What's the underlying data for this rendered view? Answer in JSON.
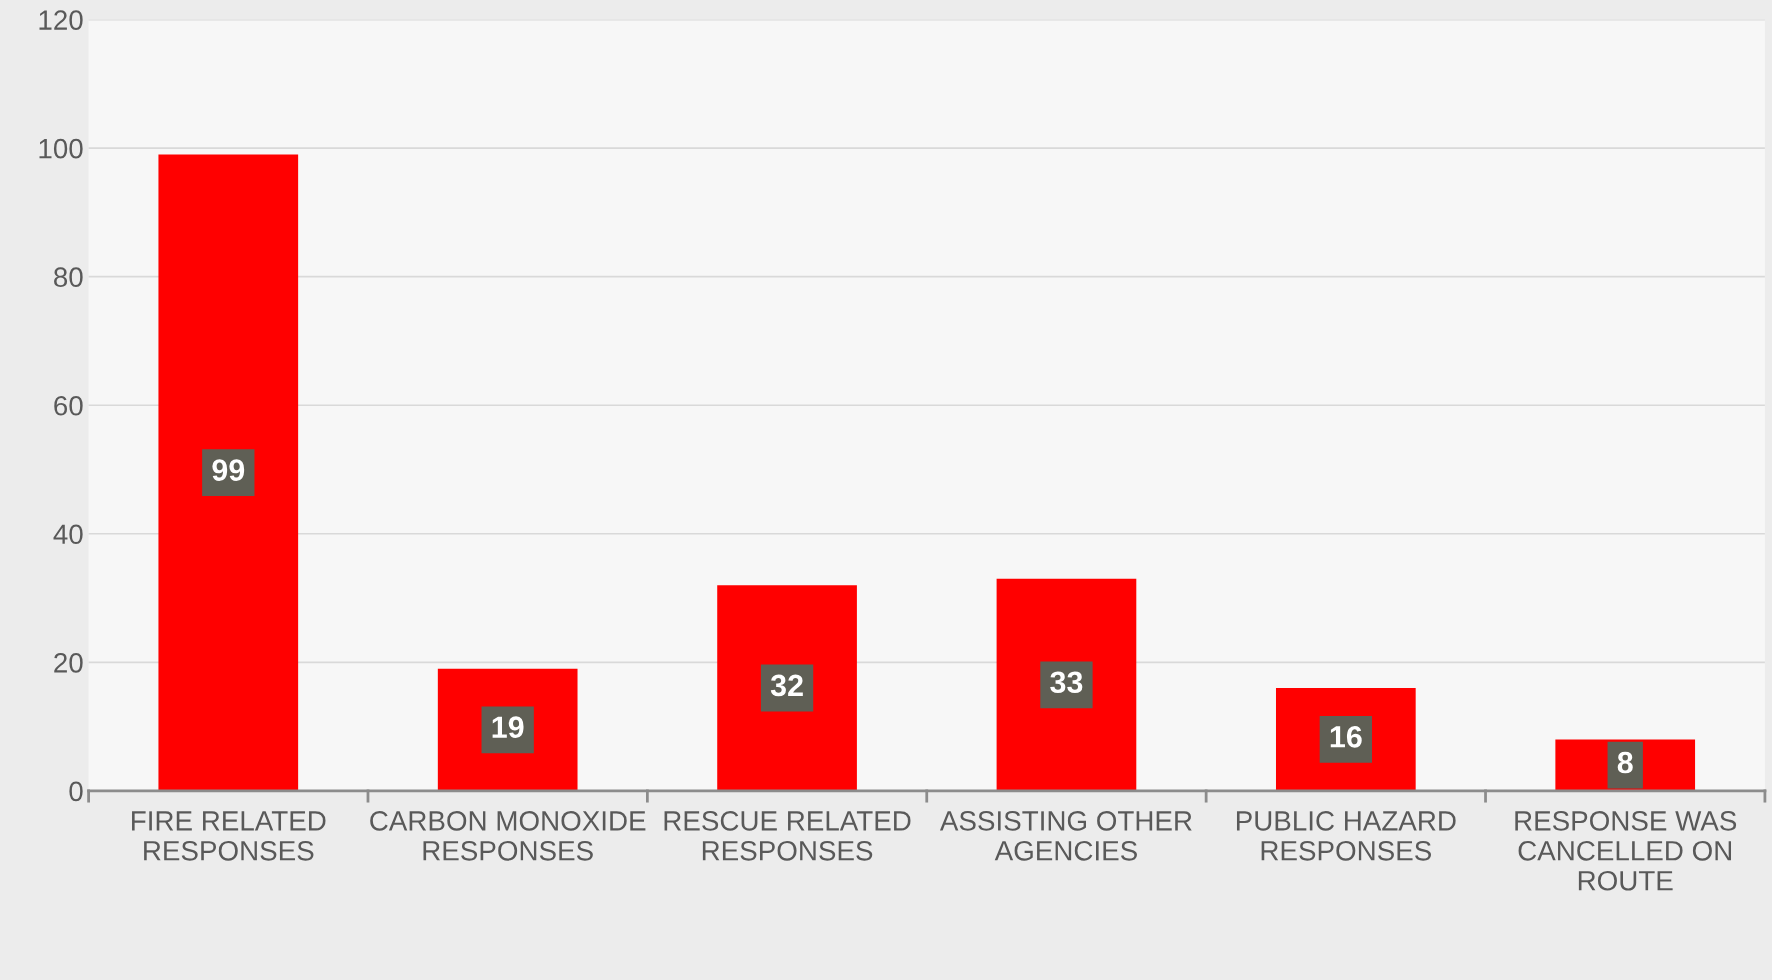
{
  "chart_data": {
    "type": "bar",
    "categories": [
      "FIRE RELATED\nRESPONSES",
      "CARBON MONOXIDE\nRESPONSES",
      "RESCUE RELATED\nRESPONSES",
      "ASSISTING OTHER\nAGENCIES",
      "PUBLIC HAZARD\nRESPONSES",
      "RESPONSE WAS\nCANCELLED ON\nROUTE"
    ],
    "values": [
      99,
      19,
      32,
      33,
      16,
      8
    ],
    "color": "#ff0000",
    "ylim": [
      0,
      120
    ],
    "yticks": [
      0,
      20,
      40,
      60,
      80,
      100,
      120
    ],
    "grid": "y",
    "data_labels": true
  }
}
